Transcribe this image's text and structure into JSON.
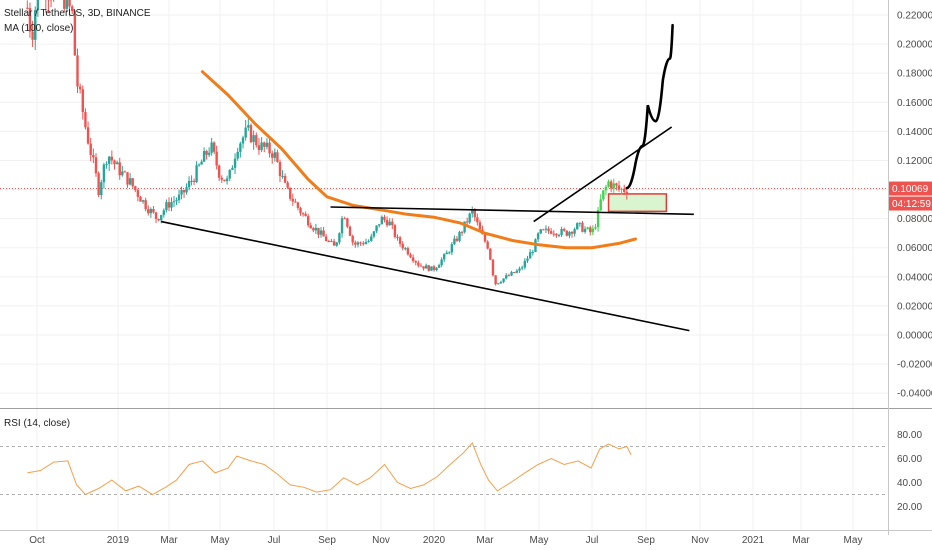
{
  "header": {
    "symbol_line": "Stellar / TetherUS, 3D, BINANCE",
    "ma_label": "MA (100, close)"
  },
  "rsi_panel": {
    "label": "RSI (14, close)"
  },
  "price_tags": {
    "last_price": "0.10069",
    "countdown": "04:12:59"
  },
  "colors": {
    "up": "#26a69a",
    "up_bright": "#3fd34f",
    "down": "#ef5350",
    "ma": "#f07d1a",
    "rsi": "#f5a04a",
    "price_line": "#ef5350",
    "drawing": "#000000",
    "zone_fill": "#d8f5d0",
    "zone_border": "#e53935"
  },
  "chart_data": [
    {
      "type": "candlestick",
      "title": "Stellar / TetherUS, 3D, BINANCE",
      "x_ticks": [
        "Oct",
        "2019",
        "Mar",
        "May",
        "Jul",
        "Sep",
        "Nov",
        "2020",
        "Mar",
        "May",
        "Jul",
        "Sep",
        "Nov",
        "2021",
        "Mar",
        "May"
      ],
      "y_ticks": [
        "0.22000",
        "0.20000",
        "0.18000",
        "0.16000",
        "0.14000",
        "0.12000",
        "0.10000",
        "0.08000",
        "0.06000",
        "0.04000",
        "0.02000",
        "0.00000",
        "-0.02000",
        "-0.04000"
      ],
      "ylim": [
        -0.045,
        0.225
      ],
      "last_price": 0.10069,
      "price_path": [
        [
          "2018-09-20",
          0.225
        ],
        [
          "2018-09-25",
          0.205
        ],
        [
          "2018-10-01",
          0.235
        ],
        [
          "2018-10-10",
          0.24
        ],
        [
          "2018-10-20",
          0.235
        ],
        [
          "2018-11-01",
          0.232
        ],
        [
          "2018-11-10",
          0.22
        ],
        [
          "2018-11-15",
          0.175
        ],
        [
          "2018-11-20",
          0.16
        ],
        [
          "2018-11-26",
          0.14
        ],
        [
          "2018-12-05",
          0.115
        ],
        [
          "2018-12-10",
          0.1
        ],
        [
          "2018-12-20",
          0.125
        ],
        [
          "2018-12-31",
          0.115
        ],
        [
          "2019-01-15",
          0.105
        ],
        [
          "2019-02-01",
          0.09
        ],
        [
          "2019-02-15",
          0.08
        ],
        [
          "2019-02-28",
          0.09
        ],
        [
          "2019-03-15",
          0.095
        ],
        [
          "2019-04-01",
          0.11
        ],
        [
          "2019-04-10",
          0.12
        ],
        [
          "2019-04-20",
          0.13
        ],
        [
          "2019-05-01",
          0.11
        ],
        [
          "2019-05-10",
          0.105
        ],
        [
          "2019-05-20",
          0.13
        ],
        [
          "2019-06-01",
          0.14
        ],
        [
          "2019-06-15",
          0.13
        ],
        [
          "2019-07-01",
          0.125
        ],
        [
          "2019-07-15",
          0.1
        ],
        [
          "2019-08-01",
          0.085
        ],
        [
          "2019-08-15",
          0.075
        ],
        [
          "2019-09-01",
          0.065
        ],
        [
          "2019-09-10",
          0.06
        ],
        [
          "2019-09-20",
          0.085
        ],
        [
          "2019-10-01",
          0.062
        ],
        [
          "2019-10-20",
          0.065
        ],
        [
          "2019-11-01",
          0.08
        ],
        [
          "2019-11-10",
          0.078
        ],
        [
          "2019-11-20",
          0.065
        ],
        [
          "2019-12-01",
          0.058
        ],
        [
          "2019-12-15",
          0.048
        ],
        [
          "2019-12-31",
          0.045
        ],
        [
          "2020-01-15",
          0.055
        ],
        [
          "2020-02-01",
          0.07
        ],
        [
          "2020-02-15",
          0.085
        ],
        [
          "2020-02-25",
          0.07
        ],
        [
          "2020-03-05",
          0.06
        ],
        [
          "2020-03-12",
          0.035
        ],
        [
          "2020-03-25",
          0.04
        ],
        [
          "2020-04-10",
          0.045
        ],
        [
          "2020-04-25",
          0.06
        ],
        [
          "2020-05-01",
          0.07
        ],
        [
          "2020-05-15",
          0.072
        ],
        [
          "2020-06-01",
          0.07
        ],
        [
          "2020-06-15",
          0.075
        ],
        [
          "2020-07-01",
          0.07
        ],
        [
          "2020-07-07",
          0.08
        ],
        [
          "2020-07-12",
          0.095
        ],
        [
          "2020-07-20",
          0.105
        ],
        [
          "2020-08-01",
          0.1
        ],
        [
          "2020-08-10",
          0.1
        ]
      ],
      "moving_average": {
        "name": "MA (100, close)",
        "points": [
          [
            "2019-04-10",
            0.181
          ],
          [
            "2019-05-10",
            0.165
          ],
          [
            "2019-06-10",
            0.145
          ],
          [
            "2019-07-10",
            0.128
          ],
          [
            "2019-08-10",
            0.107
          ],
          [
            "2019-09-01",
            0.095
          ],
          [
            "2019-10-01",
            0.089
          ],
          [
            "2019-11-01",
            0.086
          ],
          [
            "2019-12-01",
            0.083
          ],
          [
            "2020-01-01",
            0.081
          ],
          [
            "2020-02-01",
            0.077
          ],
          [
            "2020-03-01",
            0.07
          ],
          [
            "2020-04-01",
            0.065
          ],
          [
            "2020-05-01",
            0.062
          ],
          [
            "2020-06-01",
            0.06
          ],
          [
            "2020-07-01",
            0.06
          ],
          [
            "2020-08-01",
            0.063
          ],
          [
            "2020-08-20",
            0.066
          ]
        ]
      },
      "drawings": {
        "lower_trendline": [
          [
            "2019-02-20",
            0.078
          ],
          [
            "2020-10-20",
            0.003
          ]
        ],
        "horizontal_resistance": [
          [
            "2019-09-05",
            0.088
          ],
          [
            "2020-10-25",
            0.083
          ]
        ],
        "upper_channel_line": [
          [
            "2020-04-25",
            0.078
          ],
          [
            "2020-09-30",
            0.143
          ]
        ],
        "projected_path": [
          [
            "2020-08-10",
            0.101
          ],
          [
            "2020-08-20",
            0.118
          ],
          [
            "2020-08-28",
            0.13
          ],
          [
            "2020-09-03",
            0.158
          ],
          [
            "2020-09-12",
            0.147
          ],
          [
            "2020-09-20",
            0.175
          ],
          [
            "2020-09-28",
            0.19
          ],
          [
            "2020-10-01",
            0.213
          ]
        ],
        "target_zone": {
          "start": "2020-07-20",
          "end": "2020-09-24",
          "top": 0.097,
          "bottom": 0.085
        }
      }
    },
    {
      "type": "line",
      "title": "RSI (14, close)",
      "y_ticks": [
        "80.00",
        "60.00",
        "40.00",
        "20.00"
      ],
      "ylim": [
        10,
        84
      ],
      "bands": [
        70,
        30
      ],
      "series": [
        {
          "name": "RSI (14, close)",
          "points": [
            [
              "2018-09-20",
              48
            ],
            [
              "2018-10-05",
              50
            ],
            [
              "2018-10-20",
              57
            ],
            [
              "2018-11-05",
              58
            ],
            [
              "2018-11-15",
              38
            ],
            [
              "2018-11-25",
              30
            ],
            [
              "2018-12-10",
              35
            ],
            [
              "2018-12-25",
              42
            ],
            [
              "2019-01-10",
              33
            ],
            [
              "2019-01-25",
              37
            ],
            [
              "2019-02-10",
              30
            ],
            [
              "2019-02-25",
              36
            ],
            [
              "2019-03-10",
              42
            ],
            [
              "2019-03-25",
              55
            ],
            [
              "2019-04-10",
              58
            ],
            [
              "2019-04-25",
              48
            ],
            [
              "2019-05-10",
              52
            ],
            [
              "2019-05-20",
              62
            ],
            [
              "2019-06-05",
              58
            ],
            [
              "2019-06-20",
              55
            ],
            [
              "2019-07-05",
              47
            ],
            [
              "2019-07-20",
              38
            ],
            [
              "2019-08-05",
              36
            ],
            [
              "2019-08-20",
              32
            ],
            [
              "2019-09-05",
              34
            ],
            [
              "2019-09-20",
              44
            ],
            [
              "2019-10-05",
              38
            ],
            [
              "2019-10-20",
              44
            ],
            [
              "2019-11-05",
              55
            ],
            [
              "2019-11-20",
              40
            ],
            [
              "2019-12-05",
              35
            ],
            [
              "2019-12-20",
              38
            ],
            [
              "2020-01-05",
              45
            ],
            [
              "2020-01-20",
              55
            ],
            [
              "2020-02-05",
              65
            ],
            [
              "2020-02-15",
              73
            ],
            [
              "2020-02-25",
              55
            ],
            [
              "2020-03-05",
              42
            ],
            [
              "2020-03-15",
              33
            ],
            [
              "2020-03-30",
              40
            ],
            [
              "2020-04-15",
              48
            ],
            [
              "2020-04-30",
              55
            ],
            [
              "2020-05-15",
              60
            ],
            [
              "2020-05-30",
              55
            ],
            [
              "2020-06-15",
              58
            ],
            [
              "2020-06-30",
              52
            ],
            [
              "2020-07-10",
              68
            ],
            [
              "2020-07-20",
              72
            ],
            [
              "2020-08-01",
              68
            ],
            [
              "2020-08-10",
              70
            ],
            [
              "2020-08-15",
              63
            ]
          ]
        }
      ]
    }
  ]
}
